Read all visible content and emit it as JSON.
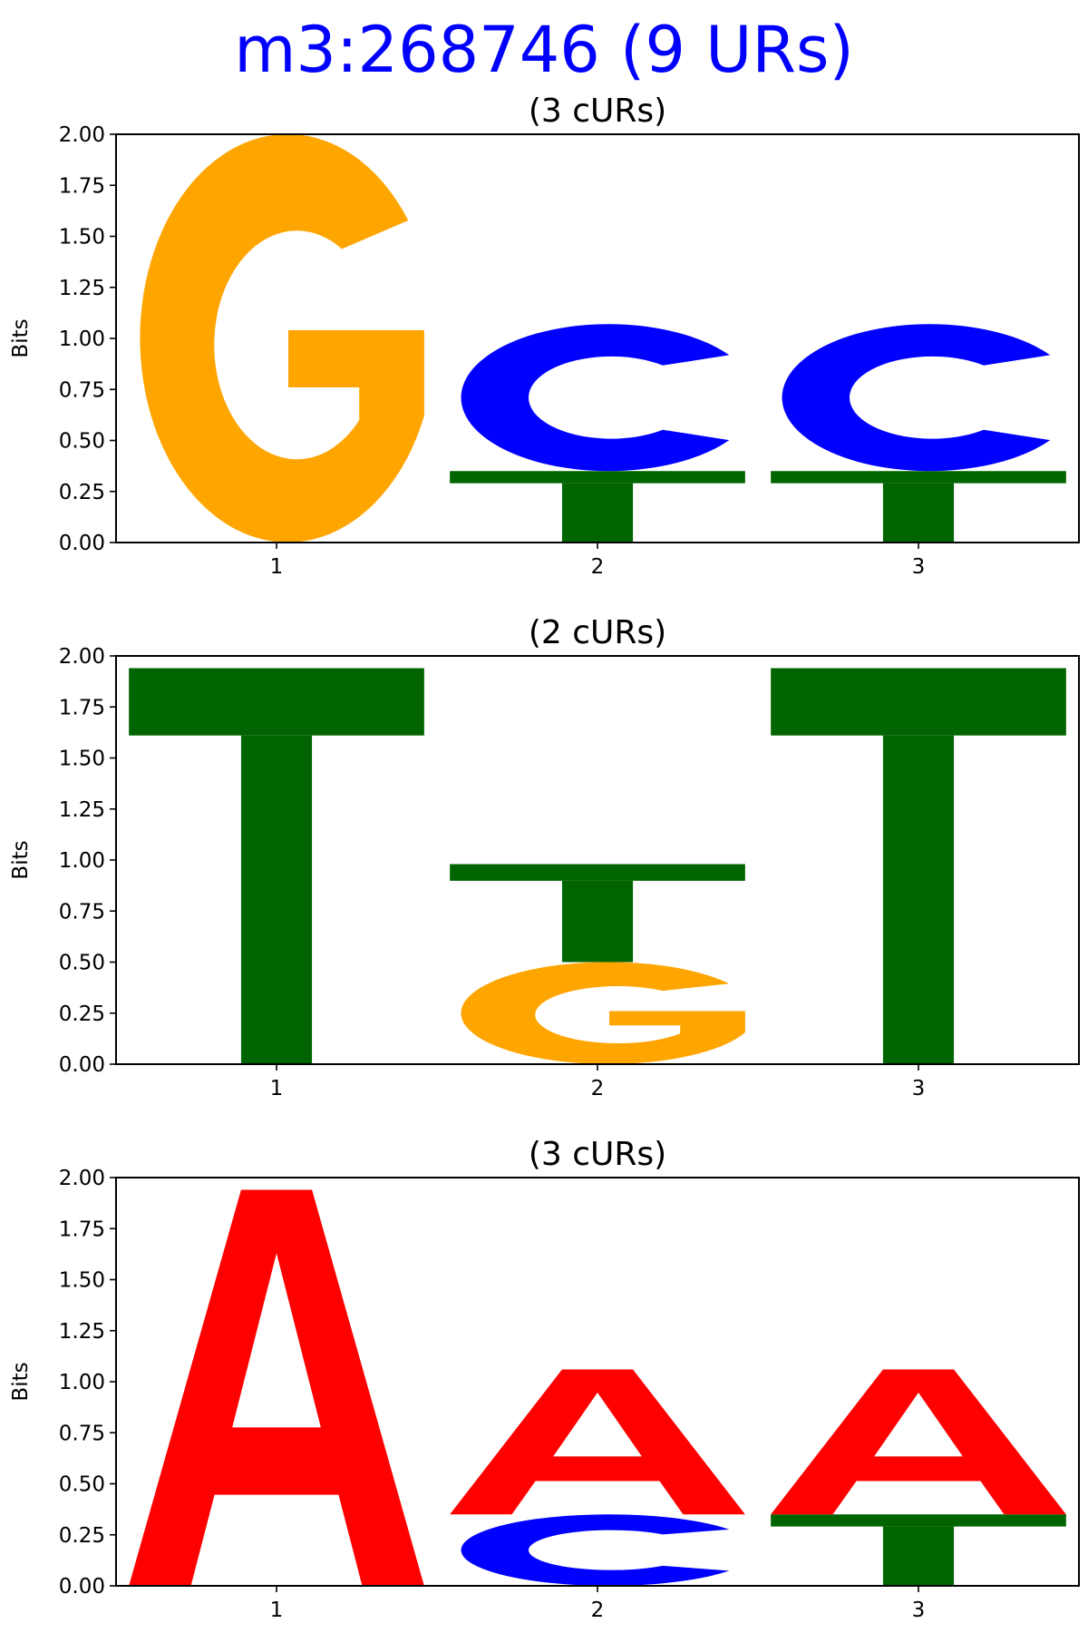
{
  "figure": {
    "title": "m3:268746 (9 URs)"
  },
  "colors": {
    "A": "#ff0000",
    "C": "#0000ff",
    "G": "#ffa500",
    "T": "#006400"
  },
  "chart_data": [
    {
      "type": "sequence-logo",
      "title": "(3 cURs)",
      "ylabel": "Bits",
      "ylim": [
        0,
        2
      ],
      "yticks": [
        "0.00",
        "0.25",
        "0.50",
        "0.75",
        "1.00",
        "1.25",
        "1.50",
        "1.75",
        "2.00"
      ],
      "positions": [
        "1",
        "2",
        "3"
      ],
      "stacks": [
        [
          {
            "base": "G",
            "bits": 2.0
          }
        ],
        [
          {
            "base": "T",
            "bits": 0.35
          },
          {
            "base": "C",
            "bits": 0.72
          }
        ],
        [
          {
            "base": "T",
            "bits": 0.35
          },
          {
            "base": "C",
            "bits": 0.72
          }
        ]
      ]
    },
    {
      "type": "sequence-logo",
      "title": "(2 cURs)",
      "ylabel": "Bits",
      "ylim": [
        0,
        2
      ],
      "yticks": [
        "0.00",
        "0.25",
        "0.50",
        "0.75",
        "1.00",
        "1.25",
        "1.50",
        "1.75",
        "2.00"
      ],
      "positions": [
        "1",
        "2",
        "3"
      ],
      "stacks": [
        [
          {
            "base": "T",
            "bits": 1.94
          }
        ],
        [
          {
            "base": "G",
            "bits": 0.5
          },
          {
            "base": "T",
            "bits": 0.48
          }
        ],
        [
          {
            "base": "T",
            "bits": 1.94
          }
        ]
      ]
    },
    {
      "type": "sequence-logo",
      "title": "(3 cURs)",
      "ylabel": "Bits",
      "ylim": [
        0,
        2
      ],
      "yticks": [
        "0.00",
        "0.25",
        "0.50",
        "0.75",
        "1.00",
        "1.25",
        "1.50",
        "1.75",
        "2.00"
      ],
      "positions": [
        "1",
        "2",
        "3"
      ],
      "stacks": [
        [
          {
            "base": "A",
            "bits": 1.94
          }
        ],
        [
          {
            "base": "C",
            "bits": 0.35
          },
          {
            "base": "A",
            "bits": 0.71
          }
        ],
        [
          {
            "base": "T",
            "bits": 0.35
          },
          {
            "base": "A",
            "bits": 0.71
          }
        ]
      ]
    }
  ]
}
